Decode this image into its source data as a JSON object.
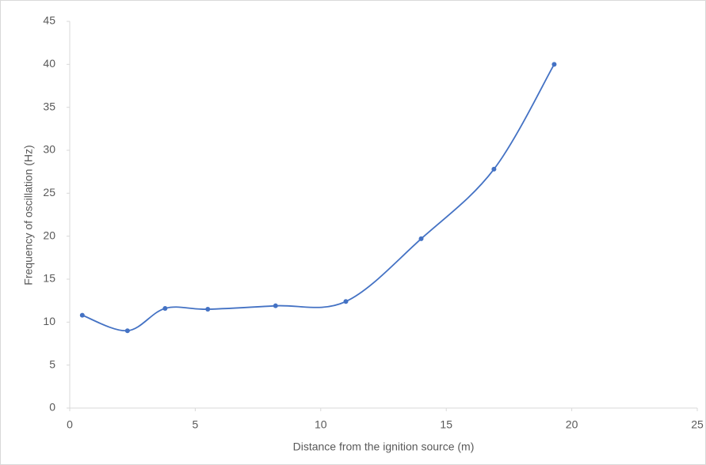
{
  "chart_data": {
    "type": "line",
    "smooth": true,
    "x_label": "Distance from the ignition source (m)",
    "y_label": "Frequency of oscillation (Hz)",
    "x": [
      0.5,
      2.3,
      3.8,
      5.5,
      8.2,
      11.0,
      14.0,
      16.9,
      19.3
    ],
    "series": [
      {
        "color": "#4472c4",
        "values": [
          10.8,
          9.0,
          11.6,
          11.5,
          11.9,
          12.4,
          19.7,
          27.8,
          40.0
        ]
      }
    ],
    "xlim": [
      0,
      25
    ],
    "xticks": [
      0,
      5,
      10,
      15,
      20,
      25
    ],
    "ylim": [
      0,
      45
    ],
    "yticks": [
      0,
      5,
      10,
      15,
      20,
      25,
      30,
      35,
      40,
      45
    ],
    "grid": false
  }
}
